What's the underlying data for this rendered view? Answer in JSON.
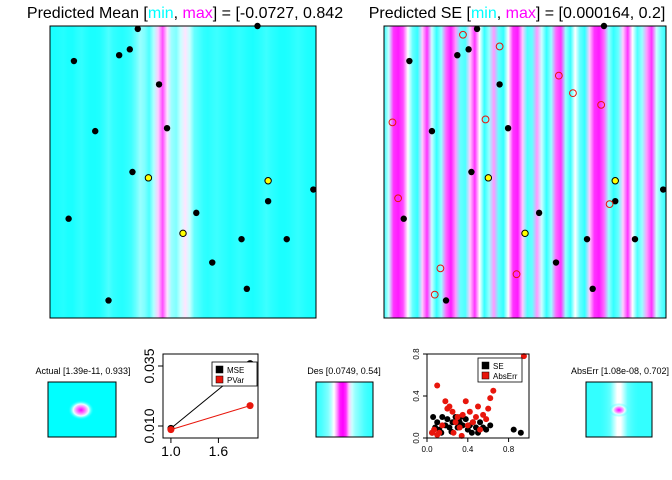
{
  "panels": {
    "mean": {
      "title_prefix": "Predicted Mean [",
      "min_word": "min",
      "sep": ", ",
      "max_word": "max",
      "title_suffix": "] = [-0.0727, 0.842",
      "colors": {
        "min": "#00ffff",
        "max": "#ff00ff"
      }
    },
    "se": {
      "title_prefix": "Predicted SE [",
      "min_word": "min",
      "sep": ", ",
      "max_word": "max",
      "title_suffix": "] = [0.000164, 0.2]",
      "colors": {
        "min": "#00ffff",
        "max": "#ff00ff"
      }
    },
    "actual": {
      "title": "Actual [1.39e-11, 0.933]"
    },
    "des": {
      "title": "Des [0.0749, 0.54]"
    },
    "abserr": {
      "title": "AbsErr [1.08e-08, 0.702]"
    }
  },
  "chart_data": [
    {
      "type": "heatmap",
      "name": "mean",
      "x_range": [
        0,
        1
      ],
      "y_range": [
        0,
        1
      ],
      "column_values": [
        0.05,
        0.05,
        0.06,
        0.07,
        0.05,
        0.05,
        0.08,
        0.1,
        0.07,
        0.05,
        0.05,
        0.06,
        0.1,
        0.15,
        0.1,
        0.08,
        0.07,
        0.09,
        0.12,
        0.2,
        0.3,
        0.25,
        0.15,
        0.35,
        0.6,
        0.85,
        0.55,
        0.3,
        0.25,
        0.4,
        0.55,
        0.4,
        0.2,
        0.15,
        0.1,
        0.08,
        0.1,
        0.12,
        0.1,
        0.08,
        0.06,
        0.08,
        0.1,
        0.08,
        0.06,
        0.05,
        0.07,
        0.09,
        0.12,
        0.09,
        0.07,
        0.05,
        0.05,
        0.06,
        0.08,
        0.1,
        0.08,
        0.06,
        0.05,
        0.05
      ],
      "points_black": [
        [
          0.09,
          0.88
        ],
        [
          0.26,
          0.9
        ],
        [
          0.33,
          0.99
        ],
        [
          0.41,
          0.8
        ],
        [
          0.78,
          1.0
        ],
        [
          0.17,
          0.64
        ],
        [
          0.44,
          0.65
        ],
        [
          0.31,
          0.5
        ],
        [
          0.55,
          0.36
        ],
        [
          0.07,
          0.34
        ],
        [
          0.72,
          0.27
        ],
        [
          0.89,
          0.27
        ],
        [
          0.61,
          0.19
        ],
        [
          0.74,
          0.1
        ],
        [
          0.22,
          0.06
        ],
        [
          0.99,
          0.44
        ],
        [
          0.82,
          0.4
        ],
        [
          0.3,
          0.92
        ]
      ],
      "points_yellow": [
        [
          0.37,
          0.48
        ],
        [
          0.82,
          0.47
        ],
        [
          0.5,
          0.29
        ]
      ]
    },
    {
      "type": "heatmap",
      "name": "se",
      "x_range": [
        0,
        1
      ],
      "y_range": [
        0,
        1
      ],
      "column_values": [
        0.1,
        0.4,
        0.9,
        0.95,
        0.85,
        0.5,
        0.2,
        0.1,
        0.6,
        0.9,
        0.4,
        0.1,
        0.3,
        0.8,
        0.95,
        0.7,
        0.2,
        0.15,
        0.6,
        0.9,
        0.5,
        0.1,
        0.3,
        0.7,
        0.2,
        0.1,
        0.5,
        0.9,
        0.95,
        0.6,
        0.15,
        0.2,
        0.7,
        0.4,
        0.1,
        0.3,
        0.8,
        0.9,
        0.3,
        0.1,
        0.5,
        0.2,
        0.1,
        0.6,
        0.9,
        0.95,
        0.8,
        0.3,
        0.1,
        0.2,
        0.6,
        0.9,
        0.5,
        0.15,
        0.3,
        0.7,
        0.9,
        0.4,
        0.2,
        0.1
      ],
      "points_black": [
        [
          0.09,
          0.88
        ],
        [
          0.26,
          0.9
        ],
        [
          0.33,
          0.99
        ],
        [
          0.41,
          0.8
        ],
        [
          0.78,
          1.0
        ],
        [
          0.17,
          0.64
        ],
        [
          0.44,
          0.65
        ],
        [
          0.31,
          0.5
        ],
        [
          0.55,
          0.36
        ],
        [
          0.07,
          0.34
        ],
        [
          0.72,
          0.27
        ],
        [
          0.89,
          0.27
        ],
        [
          0.61,
          0.19
        ],
        [
          0.74,
          0.1
        ],
        [
          0.22,
          0.06
        ],
        [
          0.99,
          0.44
        ],
        [
          0.82,
          0.4
        ],
        [
          0.3,
          0.92
        ]
      ],
      "points_yellow": [
        [
          0.37,
          0.48
        ],
        [
          0.82,
          0.47
        ],
        [
          0.5,
          0.29
        ]
      ],
      "points_open": [
        [
          0.03,
          0.67
        ],
        [
          0.05,
          0.41
        ],
        [
          0.28,
          0.97
        ],
        [
          0.41,
          0.93
        ],
        [
          0.67,
          0.77
        ],
        [
          0.62,
          0.83
        ],
        [
          0.77,
          0.73
        ],
        [
          0.36,
          0.68
        ],
        [
          0.8,
          0.39
        ],
        [
          0.2,
          0.17
        ],
        [
          0.47,
          0.15
        ],
        [
          0.18,
          0.08
        ]
      ]
    },
    {
      "type": "heatmap",
      "name": "actual",
      "blob_center": [
        0.5,
        0.5
      ]
    },
    {
      "type": "line",
      "name": "mse_pvar",
      "xlim": [
        0.9,
        2.1
      ],
      "ylim": [
        0.005,
        0.04
      ],
      "xticks": [
        1.0,
        1.6
      ],
      "xtick_labels": [
        "1.0",
        "1.6"
      ],
      "yticks": [
        0.01,
        0.035
      ],
      "ytick_labels": [
        "0.010",
        "0.035"
      ],
      "legend": [
        "MSE",
        "PVar"
      ],
      "legend_position": "top-right",
      "series": [
        {
          "name": "MSE",
          "color": "#000000",
          "x": [
            1,
            2
          ],
          "y": [
            0.009,
            0.036
          ]
        },
        {
          "name": "PVar",
          "color": "#e8160c",
          "x": [
            1,
            2
          ],
          "y": [
            0.0085,
            0.0185
          ]
        }
      ]
    },
    {
      "type": "heatmap",
      "name": "des",
      "column_values": [
        0.1,
        0.12,
        0.15,
        0.2,
        0.25,
        0.35,
        0.5,
        0.7,
        0.95,
        1.0,
        0.9,
        0.6,
        0.4,
        0.3,
        0.25,
        0.2,
        0.15,
        0.12,
        0.1,
        0.1
      ]
    },
    {
      "type": "scatter",
      "name": "se_abserr",
      "xlim": [
        0,
        1
      ],
      "ylim": [
        0,
        0.8
      ],
      "xticks": [
        0,
        0.4,
        0.8
      ],
      "xtick_labels": [
        "0.0",
        "0.4",
        "0.8"
      ],
      "yticks": [
        0,
        0.4,
        0.8
      ],
      "ytick_labels": [
        "0.0",
        "0.4",
        "0.8"
      ],
      "legend": [
        "SE",
        "AbsErr"
      ],
      "legend_position": "top-right",
      "series": [
        {
          "name": "SE",
          "color": "#000000",
          "points": [
            [
              0.05,
              0.05
            ],
            [
              0.08,
              0.1
            ],
            [
              0.1,
              0.15
            ],
            [
              0.12,
              0.08
            ],
            [
              0.15,
              0.2
            ],
            [
              0.18,
              0.12
            ],
            [
              0.2,
              0.18
            ],
            [
              0.22,
              0.1
            ],
            [
              0.25,
              0.15
            ],
            [
              0.28,
              0.2
            ],
            [
              0.3,
              0.1
            ],
            [
              0.32,
              0.15
            ],
            [
              0.35,
              0.12
            ],
            [
              0.38,
              0.18
            ],
            [
              0.4,
              0.08
            ],
            [
              0.42,
              0.12
            ],
            [
              0.45,
              0.15
            ],
            [
              0.48,
              0.1
            ],
            [
              0.5,
              0.05
            ],
            [
              0.55,
              0.1
            ],
            [
              0.58,
              0.08
            ],
            [
              0.62,
              0.12
            ],
            [
              0.85,
              0.08
            ],
            [
              0.92,
              0.05
            ],
            [
              0.06,
              0.2
            ],
            [
              0.14,
              0.05
            ],
            [
              0.24,
              0.06
            ],
            [
              0.33,
              0.2
            ],
            [
              0.44,
              0.05
            ],
            [
              0.52,
              0.15
            ]
          ]
        },
        {
          "name": "AbsErr",
          "color": "#e8160c",
          "points": [
            [
              0.05,
              0.05
            ],
            [
              0.07,
              0.08
            ],
            [
              0.1,
              0.03
            ],
            [
              0.12,
              0.05
            ],
            [
              0.15,
              0.12
            ],
            [
              0.18,
              0.35
            ],
            [
              0.22,
              0.3
            ],
            [
              0.25,
              0.25
            ],
            [
              0.28,
              0.15
            ],
            [
              0.3,
              0.2
            ],
            [
              0.32,
              0.1
            ],
            [
              0.35,
              0.22
            ],
            [
              0.38,
              0.35
            ],
            [
              0.42,
              0.25
            ],
            [
              0.45,
              0.15
            ],
            [
              0.48,
              0.2
            ],
            [
              0.5,
              0.3
            ],
            [
              0.55,
              0.22
            ],
            [
              0.58,
              0.18
            ],
            [
              0.6,
              0.28
            ],
            [
              0.62,
              0.38
            ],
            [
              0.9,
              0.72
            ],
            [
              0.95,
              0.78
            ],
            [
              0.1,
              0.5
            ],
            [
              0.2,
              0.28
            ],
            [
              0.26,
              0.05
            ],
            [
              0.34,
              0.02
            ],
            [
              0.4,
              0.12
            ],
            [
              0.52,
              0.08
            ],
            [
              0.65,
              0.45
            ]
          ]
        }
      ]
    },
    {
      "type": "heatmap",
      "name": "abserr",
      "blob_center": [
        0.5,
        0.5
      ],
      "column_values": [
        0.1,
        0.1,
        0.1,
        0.1,
        0.1,
        0.12,
        0.15,
        0.2,
        0.35,
        0.5,
        0.5,
        0.35,
        0.2,
        0.15,
        0.12,
        0.1,
        0.1,
        0.1,
        0.1,
        0.1
      ]
    }
  ]
}
